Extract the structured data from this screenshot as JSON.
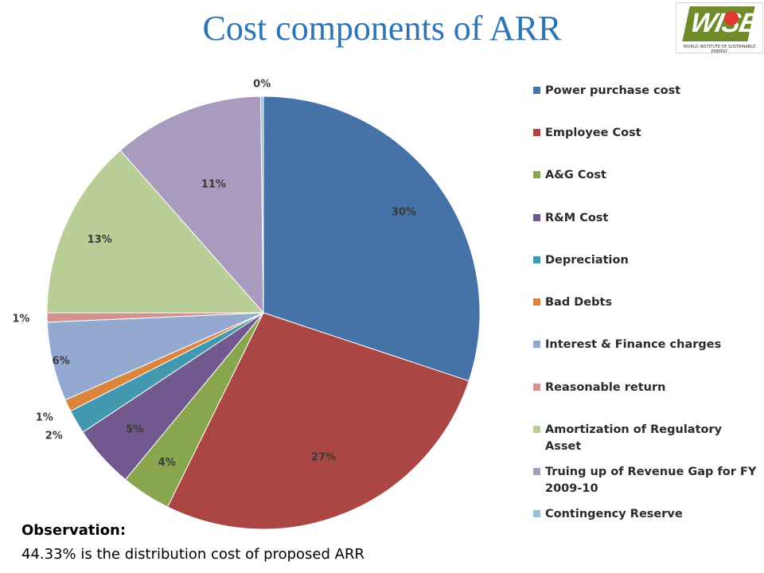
{
  "title": "Cost components of ARR",
  "logo": {
    "mark_text": "WISE",
    "tagline": "WORLD INSTITUTE OF SUSTAINABLE ENERGY"
  },
  "observation": {
    "heading": "Observation:",
    "text": "44.33% is the distribution cost of proposed ARR"
  },
  "chart_data": {
    "type": "pie",
    "title": "Cost components of ARR",
    "legend_position": "right",
    "start": "top, clockwise",
    "slices": [
      {
        "name": "Power purchase cost",
        "value": 30.1,
        "label": "30%",
        "color": "#4572a7"
      },
      {
        "name": "Employee Cost",
        "value": 27.2,
        "label": "27%",
        "color": "#aa4643"
      },
      {
        "name": "A&G Cost",
        "value": 3.7,
        "label": "4%",
        "color": "#89a54e"
      },
      {
        "name": "R&M Cost",
        "value": 4.7,
        "label": "5%",
        "color": "#71588f"
      },
      {
        "name": "Depreciation",
        "value": 1.8,
        "label": "2%",
        "color": "#4198af"
      },
      {
        "name": "Bad Debts",
        "value": 0.9,
        "label": "1%",
        "color": "#db843d"
      },
      {
        "name": "Interest & Finance charges",
        "value": 5.9,
        "label": "6%",
        "color": "#93a9cf"
      },
      {
        "name": "Reasonable return",
        "value": 0.7,
        "label": "1%",
        "color": "#d19392"
      },
      {
        "name": "Amortization of Regulatory Asset",
        "value": 13.5,
        "label": "13%",
        "color": "#b9cd96"
      },
      {
        "name": "Truing up of Revenue Gap for FY 2009-10",
        "value": 11.3,
        "label": "11%",
        "color": "#a99bbd"
      },
      {
        "name": "Contingency Reserve",
        "value": 0.2,
        "label": "0%",
        "color": "#91c3d5"
      }
    ]
  }
}
